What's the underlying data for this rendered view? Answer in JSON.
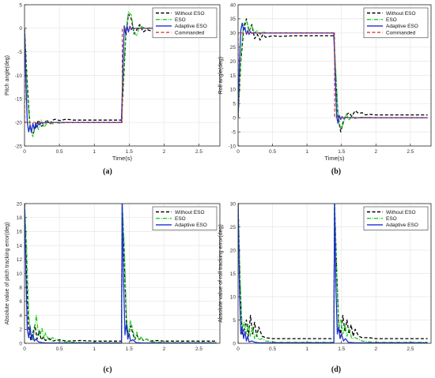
{
  "colors": {
    "without_eso": "#000000",
    "eso": "#22cc22",
    "adaptive_eso": "#1f2fd0",
    "commanded": "#d43a2f",
    "grid": "#e6e6e6",
    "axis": "#262626"
  },
  "chart_data": [
    {
      "id": "a",
      "type": "line",
      "caption": "(a)",
      "xlabel": "Time(s)",
      "ylabel": "Pitch angle(deg)",
      "xlim": [
        0,
        2.8
      ],
      "ylim": [
        -25,
        5
      ],
      "xticks": [
        0,
        0.5,
        1,
        1.5,
        2,
        2.5
      ],
      "yticks": [
        -25,
        -20,
        -15,
        -10,
        -5,
        0,
        5
      ],
      "grid": true,
      "legend_position": "top-right",
      "series": [
        {
          "name": "Without ESO",
          "color_key": "without_eso",
          "dash": "4,2.5",
          "width": 1.3,
          "x": [
            0,
            0.04,
            0.08,
            0.12,
            0.16,
            0.2,
            0.24,
            0.28,
            0.32,
            0.36,
            0.4,
            0.45,
            0.5,
            0.6,
            0.7,
            0.8,
            1.0,
            1.2,
            1.39,
            1.41,
            1.45,
            1.49,
            1.53,
            1.57,
            1.61,
            1.65,
            1.7,
            1.75,
            1.8,
            1.9,
            2.0,
            2.2,
            2.5,
            2.75
          ],
          "y": [
            0,
            -12,
            -21.5,
            -22.5,
            -21,
            -19.5,
            -20.8,
            -20.5,
            -19.4,
            -20.4,
            -19.5,
            -19.3,
            -19.6,
            -19.3,
            -19.5,
            -19.5,
            -19.5,
            -19.5,
            -19.5,
            -14,
            -2,
            3,
            2,
            -1.2,
            -0.3,
            0.8,
            -0.8,
            -0.3,
            -0.5,
            -0.4,
            -0.5,
            -0.5,
            -0.5,
            -0.5
          ]
        },
        {
          "name": "ESO",
          "color_key": "eso",
          "dash": "5,1.5,1,1.5",
          "width": 1.3,
          "x": [
            0,
            0.04,
            0.08,
            0.12,
            0.16,
            0.2,
            0.24,
            0.28,
            0.32,
            0.36,
            0.4,
            0.45,
            0.5,
            0.6,
            0.7,
            0.8,
            1.0,
            1.2,
            1.39,
            1.41,
            1.45,
            1.49,
            1.53,
            1.57,
            1.61,
            1.65,
            1.7,
            1.75,
            1.8,
            1.9,
            2.0,
            2.2,
            2.5,
            2.75
          ],
          "y": [
            0,
            -14,
            -21,
            -23,
            -20,
            -21.5,
            -19.5,
            -21,
            -20.2,
            -20,
            -20.3,
            -19.9,
            -20.2,
            -20,
            -20,
            -20,
            -20,
            -20,
            -20,
            -13,
            -1,
            3.5,
            2.8,
            -1,
            -1.5,
            0.5,
            0.2,
            -0.2,
            0.1,
            0,
            0,
            0,
            0,
            0
          ]
        },
        {
          "name": "Adaptive ESO",
          "color_key": "adaptive_eso",
          "dash": "",
          "width": 1.3,
          "x": [
            0,
            0.02,
            0.04,
            0.06,
            0.08,
            0.1,
            0.12,
            0.14,
            0.16,
            0.18,
            0.2,
            0.22,
            0.24,
            0.26,
            0.28,
            0.3,
            0.35,
            0.4,
            0.5,
            0.7,
            1.0,
            1.2,
            1.39,
            1.41,
            1.43,
            1.45,
            1.47,
            1.49,
            1.51,
            1.53,
            1.55,
            1.57,
            1.6,
            1.65,
            1.75,
            2.0,
            2.5,
            2.75
          ],
          "y": [
            0,
            -12,
            -20,
            -22,
            -20.5,
            -22,
            -20.2,
            -21.5,
            -20.2,
            -21,
            -20.2,
            -20.5,
            -20,
            -20.2,
            -20,
            -20,
            -20,
            -20,
            -20,
            -20,
            -20,
            -20,
            -20,
            -8,
            0.5,
            -1.2,
            0.5,
            -0.8,
            0.4,
            -0.3,
            0.2,
            -0.1,
            0,
            0,
            0,
            0,
            0,
            0
          ]
        },
        {
          "name": "Commanded",
          "color_key": "commanded",
          "dash": "4,2.5",
          "width": 1.2,
          "x": [
            0,
            0.001,
            1.4,
            1.401,
            2.75
          ],
          "y": [
            0,
            -20,
            -20,
            0,
            0
          ]
        }
      ]
    },
    {
      "id": "b",
      "type": "line",
      "caption": "(b)",
      "xlabel": "Time(s)",
      "ylabel": "Roll angle(deg)",
      "xlim": [
        0,
        2.8
      ],
      "ylim": [
        -10,
        40
      ],
      "xticks": [
        0,
        0.5,
        1,
        1.5,
        2,
        2.5
      ],
      "yticks": [
        -10,
        -5,
        0,
        5,
        10,
        15,
        20,
        25,
        30,
        35,
        40
      ],
      "grid": true,
      "legend_position": "top-right",
      "series": [
        {
          "name": "Without ESO",
          "color_key": "without_eso",
          "dash": "4,2.5",
          "width": 1.3,
          "x": [
            0,
            0.04,
            0.08,
            0.12,
            0.16,
            0.2,
            0.24,
            0.28,
            0.32,
            0.36,
            0.4,
            0.5,
            0.6,
            0.8,
            1.0,
            1.2,
            1.39,
            1.41,
            1.45,
            1.49,
            1.53,
            1.57,
            1.61,
            1.65,
            1.7,
            1.75,
            1.8,
            1.85,
            1.9,
            2.0,
            2.2,
            2.5,
            2.75
          ],
          "y": [
            0,
            20,
            31,
            35,
            30.5,
            33,
            28,
            29.5,
            27.5,
            29.5,
            28.5,
            29,
            28.8,
            29,
            29,
            29,
            29,
            18,
            0,
            -5,
            -1,
            1,
            1.8,
            0.5,
            2.5,
            1.5,
            1.8,
            1,
            1.2,
            1,
            1,
            1,
            1
          ]
        },
        {
          "name": "ESO",
          "color_key": "eso",
          "dash": "5,1.5,1,1.5",
          "width": 1.3,
          "x": [
            0,
            0.04,
            0.08,
            0.12,
            0.16,
            0.2,
            0.24,
            0.28,
            0.32,
            0.36,
            0.4,
            0.5,
            0.6,
            0.8,
            1.0,
            1.2,
            1.39,
            1.41,
            1.45,
            1.49,
            1.53,
            1.57,
            1.61,
            1.65,
            1.7,
            1.8,
            2.0,
            2.5,
            2.75
          ],
          "y": [
            0,
            22,
            33,
            34.5,
            31,
            32.5,
            30,
            31,
            29.5,
            30.5,
            30,
            30,
            30,
            30,
            30,
            30,
            30,
            20,
            1,
            -4,
            -2,
            1.5,
            -1,
            0.8,
            -0.3,
            0.2,
            0,
            0,
            0
          ]
        },
        {
          "name": "Adaptive ESO",
          "color_key": "adaptive_eso",
          "dash": "",
          "width": 1.3,
          "x": [
            0,
            0.02,
            0.04,
            0.06,
            0.08,
            0.1,
            0.12,
            0.14,
            0.16,
            0.18,
            0.2,
            0.22,
            0.25,
            0.3,
            0.4,
            0.6,
            1.0,
            1.39,
            1.41,
            1.43,
            1.45,
            1.47,
            1.49,
            1.51,
            1.53,
            1.56,
            1.6,
            1.7,
            2.0,
            2.75
          ],
          "y": [
            0,
            20,
            31,
            33.5,
            31,
            32,
            29.5,
            30.8,
            29.5,
            30.5,
            29.8,
            30.2,
            30,
            30,
            30,
            30,
            30,
            30,
            15,
            0.5,
            -2,
            0.8,
            -0.6,
            0.4,
            -0.2,
            0.1,
            0,
            0,
            0,
            0
          ]
        },
        {
          "name": "Commanded",
          "color_key": "commanded",
          "dash": "4,2.5",
          "width": 1.2,
          "x": [
            0,
            0.001,
            1.4,
            1.401,
            2.75
          ],
          "y": [
            0,
            30,
            30,
            0,
            0
          ]
        }
      ]
    },
    {
      "id": "c",
      "type": "line",
      "caption": "(c)",
      "xlabel": "",
      "ylabel": "Absolute value of pitch tracking error(deg)",
      "xlim": [
        0,
        2.8
      ],
      "ylim": [
        0,
        20
      ],
      "xticks": [
        0,
        0.5,
        1,
        1.5,
        2,
        2.5
      ],
      "yticks": [
        0,
        2,
        4,
        6,
        8,
        10,
        12,
        14,
        16,
        18,
        20
      ],
      "grid": true,
      "legend_position": "top-right",
      "series": [
        {
          "name": "Without ESO",
          "color_key": "without_eso",
          "dash": "4,2.5",
          "width": 1.3,
          "x": [
            0,
            0.03,
            0.06,
            0.09,
            0.12,
            0.15,
            0.18,
            0.21,
            0.24,
            0.27,
            0.3,
            0.35,
            0.4,
            0.5,
            0.6,
            0.8,
            1.0,
            1.2,
            1.39,
            1.4,
            1.43,
            1.46,
            1.49,
            1.52,
            1.55,
            1.58,
            1.61,
            1.64,
            1.67,
            1.7,
            1.75,
            1.8,
            1.9,
            2.0,
            2.2,
            2.5,
            2.75
          ],
          "y": [
            20,
            10,
            2,
            0.5,
            1.5,
            2.6,
            0.6,
            1.8,
            0.5,
            0.9,
            0.4,
            0.7,
            0.3,
            0.5,
            0.3,
            0.4,
            0.3,
            0.3,
            0.3,
            20,
            12,
            3,
            1,
            2.5,
            1.5,
            0.5,
            1.2,
            0.5,
            0.8,
            0.4,
            0.6,
            0.3,
            0.4,
            0.3,
            0.3,
            0.3,
            0.3
          ]
        },
        {
          "name": "ESO",
          "color_key": "eso",
          "dash": "5,1.5,1,1.5",
          "width": 1.3,
          "x": [
            0,
            0.03,
            0.06,
            0.09,
            0.12,
            0.15,
            0.17,
            0.19,
            0.22,
            0.25,
            0.28,
            0.3,
            0.35,
            0.4,
            0.5,
            0.6,
            0.8,
            1.0,
            1.39,
            1.4,
            1.43,
            1.46,
            1.49,
            1.52,
            1.55,
            1.58,
            1.61,
            1.64,
            1.67,
            1.7,
            1.75,
            1.8,
            1.9,
            2.0,
            2.5,
            2.75
          ],
          "y": [
            20,
            14,
            4,
            1.5,
            0.5,
            2.5,
            4,
            2,
            1,
            2.2,
            0.6,
            1.5,
            0.4,
            0.8,
            0.3,
            0.2,
            0.1,
            0.1,
            0.1,
            20,
            14,
            4,
            1,
            3.2,
            2,
            0.6,
            1.6,
            0.5,
            1,
            0.3,
            0.6,
            0.2,
            0.2,
            0.1,
            0.1,
            0.1
          ]
        },
        {
          "name": "Adaptive ESO",
          "color_key": "adaptive_eso",
          "dash": "",
          "width": 1.3,
          "x": [
            0,
            0.02,
            0.04,
            0.06,
            0.08,
            0.1,
            0.12,
            0.14,
            0.16,
            0.2,
            0.25,
            0.3,
            0.5,
            1.0,
            1.39,
            1.4,
            1.42,
            1.44,
            1.46,
            1.48,
            1.5,
            1.52,
            1.55,
            1.6,
            1.7,
            2.0,
            2.75
          ],
          "y": [
            20,
            10,
            2,
            0.8,
            2.4,
            0.5,
            1.3,
            0.3,
            0.6,
            0.2,
            0.1,
            0.05,
            0.05,
            0.05,
            0.05,
            20,
            9,
            1.2,
            2.8,
            0.6,
            1.4,
            0.3,
            0.5,
            0.1,
            0.05,
            0.05,
            0.05
          ]
        }
      ]
    },
    {
      "id": "d",
      "type": "line",
      "caption": "(d)",
      "xlabel": "",
      "ylabel": "Absolute value of roll tracking error(deg)",
      "xlim": [
        0,
        2.8
      ],
      "ylim": [
        0,
        30
      ],
      "xticks": [
        0,
        0.5,
        1,
        1.5,
        2,
        2.5
      ],
      "yticks": [
        0,
        5,
        10,
        15,
        20,
        25,
        30
      ],
      "grid": true,
      "legend_position": "top-right",
      "series": [
        {
          "name": "Without ESO",
          "color_key": "without_eso",
          "dash": "4,2.5",
          "width": 1.3,
          "x": [
            0,
            0.03,
            0.06,
            0.09,
            0.12,
            0.15,
            0.18,
            0.21,
            0.24,
            0.27,
            0.3,
            0.35,
            0.4,
            0.5,
            0.6,
            0.8,
            1.0,
            1.2,
            1.39,
            1.4,
            1.43,
            1.46,
            1.49,
            1.52,
            1.55,
            1.58,
            1.61,
            1.64,
            1.67,
            1.7,
            1.75,
            1.8,
            1.9,
            2.0,
            2.2,
            2.5,
            2.75
          ],
          "y": [
            30,
            12,
            2,
            3,
            5,
            1.5,
            6,
            2,
            4.5,
            1.5,
            3.5,
            1.5,
            1.2,
            1,
            1,
            1,
            1,
            1,
            1,
            30,
            16,
            4,
            2,
            6,
            2.5,
            5,
            2,
            4,
            1.5,
            3,
            1.5,
            1.2,
            1.2,
            1,
            1,
            1,
            1
          ]
        },
        {
          "name": "ESO",
          "color_key": "eso",
          "dash": "5,1.5,1,1.5",
          "width": 1.3,
          "x": [
            0,
            0.03,
            0.06,
            0.09,
            0.12,
            0.15,
            0.18,
            0.21,
            0.24,
            0.27,
            0.3,
            0.35,
            0.4,
            0.5,
            0.6,
            0.8,
            1.0,
            1.39,
            1.4,
            1.43,
            1.46,
            1.49,
            1.52,
            1.55,
            1.58,
            1.61,
            1.65,
            1.7,
            1.8,
            1.9,
            2.0,
            2.5,
            2.75
          ],
          "y": [
            30,
            14,
            3,
            4.5,
            2,
            4,
            1.5,
            3.5,
            1,
            2,
            0.8,
            1,
            0.5,
            0.3,
            0.2,
            0.2,
            0.2,
            0.2,
            30,
            16,
            3,
            5,
            2,
            4,
            1.5,
            3,
            1,
            1.2,
            0.5,
            0.3,
            0.2,
            0.2,
            0.2
          ]
        },
        {
          "name": "Adaptive ESO",
          "color_key": "adaptive_eso",
          "dash": "",
          "width": 1.3,
          "x": [
            0,
            0.02,
            0.04,
            0.06,
            0.08,
            0.1,
            0.12,
            0.14,
            0.16,
            0.2,
            0.25,
            0.3,
            0.5,
            1.0,
            1.39,
            1.4,
            1.42,
            1.44,
            1.46,
            1.48,
            1.5,
            1.53,
            1.56,
            1.6,
            1.7,
            2.0,
            2.75
          ],
          "y": [
            30,
            12,
            2,
            3.5,
            1,
            2.5,
            0.5,
            1.5,
            0.3,
            0.5,
            0.2,
            0.1,
            0.1,
            0.1,
            0.1,
            30,
            12,
            2,
            3.5,
            1,
            2,
            0.5,
            1,
            0.2,
            0.1,
            0.1,
            0.1
          ]
        }
      ]
    }
  ]
}
